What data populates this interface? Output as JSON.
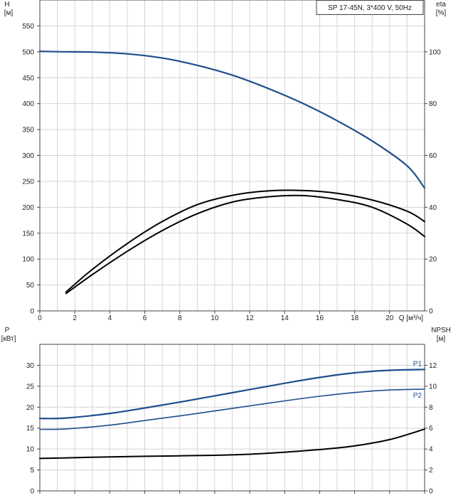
{
  "chart_data": [
    {
      "type": "line",
      "panel": "head-efficiency",
      "legend_box": "SP 17-45N, 3*400 V, 50Hz",
      "xlabel": "Q [м³/ч]",
      "xlim": [
        0,
        22
      ],
      "x_ticks": [
        "0",
        "2",
        "4",
        "6",
        "8",
        "10",
        "12",
        "14",
        "16",
        "18",
        "20"
      ],
      "y_left": {
        "label_top": "H",
        "label_unit": "[м]",
        "ylim": [
          0,
          600
        ],
        "ticks": [
          "0",
          "50",
          "100",
          "150",
          "200",
          "250",
          "300",
          "350",
          "400",
          "450",
          "500",
          "550"
        ]
      },
      "y_right": {
        "label_top": "eta",
        "label_unit": "[%]",
        "ylim": [
          0,
          120
        ],
        "ticks": [
          "0",
          "20",
          "40",
          "60",
          "80",
          "100"
        ]
      },
      "grid": true,
      "series": [
        {
          "axis": "left",
          "color": "#1f4e8c",
          "x": [
            0,
            1.5,
            3,
            5,
            7,
            9,
            11,
            13,
            15,
            17,
            19,
            21,
            22
          ],
          "y": [
            501,
            500,
            499.5,
            496,
            488,
            474,
            455,
            430,
            401,
            367,
            328,
            280,
            237
          ]
        },
        {
          "axis": "right",
          "color": "#000000",
          "x": [
            1.5,
            3,
            5,
            7,
            9,
            11,
            13,
            15,
            17,
            19,
            21,
            22
          ],
          "y": [
            6.7,
            14,
            23,
            31,
            37.5,
            42,
            44,
            44.5,
            43,
            40,
            33.5,
            28.7
          ]
        },
        {
          "axis": "right",
          "color": "#000000",
          "x": [
            1.5,
            3,
            5,
            7,
            9,
            11,
            13,
            15,
            17,
            19,
            21,
            22
          ],
          "y": [
            7.3,
            16,
            26,
            34.5,
            41,
            44.6,
            46.3,
            46.5,
            45.4,
            42.8,
            38.5,
            34.5
          ]
        }
      ]
    },
    {
      "type": "line",
      "panel": "power-npsh",
      "xlim": [
        0,
        22
      ],
      "y_left": {
        "label_top": "P",
        "label_unit": "[кВт]",
        "ylim": [
          0,
          35
        ],
        "ticks": [
          "0",
          "5",
          "10",
          "15",
          "20",
          "25",
          "30"
        ]
      },
      "y_right": {
        "label_top": "NPSH",
        "label_unit": "[м]",
        "ylim": [
          0,
          14
        ],
        "ticks": [
          "0",
          "2",
          "4",
          "6",
          "8",
          "10",
          "12"
        ]
      },
      "grid": true,
      "series": [
        {
          "name": "P1",
          "axis": "left",
          "color": "#1f4e8c",
          "x": [
            0,
            1.5,
            4,
            6,
            8,
            10,
            12,
            14,
            16,
            18,
            20,
            22
          ],
          "y": [
            17.3,
            17.4,
            18.5,
            19.8,
            21.2,
            22.7,
            24.2,
            25.7,
            27.1,
            28.2,
            28.8,
            29.0
          ]
        },
        {
          "name": "P2",
          "axis": "left",
          "color": "#1f4e8c",
          "x": [
            0,
            1.5,
            4,
            6,
            8,
            10,
            12,
            14,
            16,
            18,
            20,
            22
          ],
          "y": [
            14.7,
            14.8,
            15.7,
            16.8,
            17.9,
            19.1,
            20.3,
            21.5,
            22.6,
            23.5,
            24.1,
            24.3
          ]
        },
        {
          "axis": "right",
          "color": "#000000",
          "x": [
            0,
            1.5,
            4,
            6,
            8,
            10,
            12,
            14,
            16,
            18,
            20,
            22
          ],
          "y": [
            3.1,
            3.15,
            3.25,
            3.3,
            3.35,
            3.4,
            3.5,
            3.7,
            3.95,
            4.3,
            4.9,
            5.9
          ]
        }
      ]
    }
  ]
}
